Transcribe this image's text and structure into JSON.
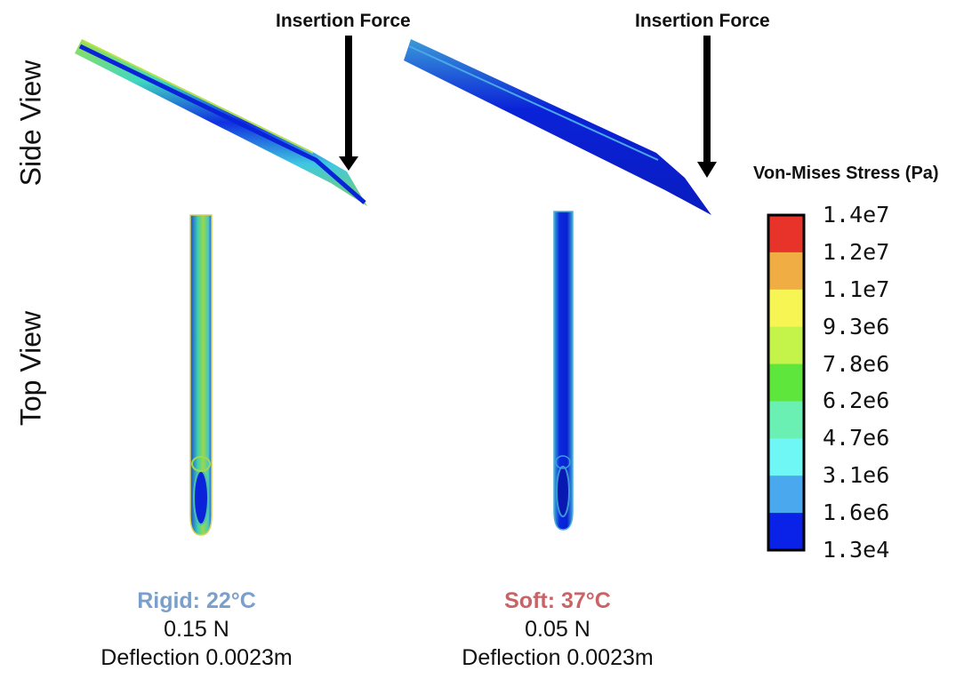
{
  "labels": {
    "insertion_force_left": "Insertion Force",
    "insertion_force_right": "Insertion Force",
    "side_view": "Side View",
    "top_view": "Top View"
  },
  "legend": {
    "title": "Von-Mises Stress (Pa)",
    "ticks": [
      "1.4e7",
      "1.2e7",
      "1.1e7",
      "9.3e6",
      "7.8e6",
      "6.2e6",
      "4.7e6",
      "3.1e6",
      "1.6e6",
      "1.3e4"
    ],
    "band_colors": [
      "#e8332a",
      "#f0ad44",
      "#f6f553",
      "#c4f34a",
      "#5ee63d",
      "#69f0b2",
      "#6ef7f4",
      "#4aa8ee",
      "#0a22e8"
    ]
  },
  "panels": [
    {
      "title": "Rigid: 22°C",
      "title_color": "#7a9fcc",
      "force": "0.15 N",
      "deflection": "Deflection 0.0023m"
    },
    {
      "title": "Soft: 37°C",
      "title_color": "#c96466",
      "force": "0.05 N",
      "deflection": "Deflection 0.0023m"
    }
  ]
}
